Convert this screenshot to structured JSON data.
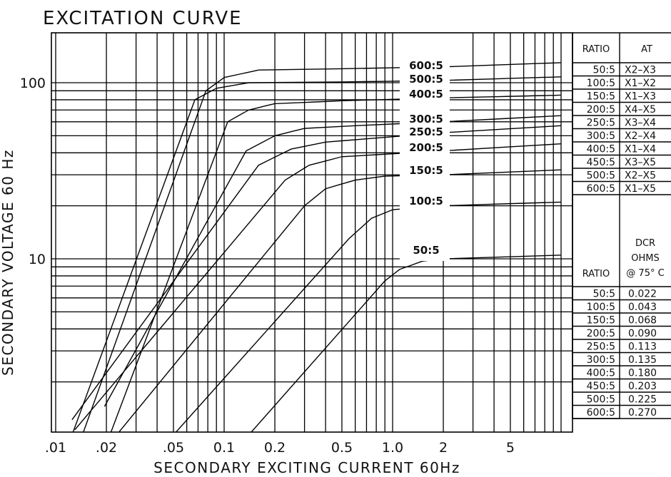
{
  "chart_data": {
    "type": "line",
    "title": "EXCITATION CURVE",
    "xlabel": "SECONDARY EXCITING CURRENT 60Hz",
    "ylabel": "SECONDARY VOLTAGE 60 Hz",
    "x_scale": "log",
    "y_scale": "log",
    "xlim": [
      0.01,
      10
    ],
    "ylim": [
      1,
      200
    ],
    "grid": true,
    "x_tick_labels": [
      ".01",
      ".02",
      ".05",
      "0.1",
      "0.2",
      "0.5",
      "1.0",
      "2",
      "5"
    ],
    "x_ticks": [
      0.01,
      0.02,
      0.05,
      0.1,
      0.2,
      0.5,
      1.0,
      2,
      5
    ],
    "y_tick_labels": [
      "10",
      "100"
    ],
    "y_ticks": [
      10,
      100
    ],
    "series": [
      {
        "name": "600:5",
        "points": [
          [
            0.0144,
            1
          ],
          [
            0.078,
            90
          ],
          [
            0.1,
            107
          ],
          [
            0.16,
            118
          ],
          [
            0.5,
            120
          ],
          [
            2,
            123
          ],
          [
            10,
            130
          ]
        ]
      },
      {
        "name": "500:5",
        "points": [
          [
            0.0125,
            1
          ],
          [
            0.067,
            80
          ],
          [
            0.09,
            93
          ],
          [
            0.14,
            100
          ],
          [
            0.5,
            101
          ],
          [
            2,
            103
          ],
          [
            10,
            108
          ]
        ]
      },
      {
        "name": "400:5",
        "points": [
          [
            0.021,
            1
          ],
          [
            0.105,
            60
          ],
          [
            0.14,
            70
          ],
          [
            0.2,
            76
          ],
          [
            0.5,
            79
          ],
          [
            2,
            82
          ],
          [
            10,
            85
          ]
        ]
      },
      {
        "name": "300:5",
        "points": [
          [
            0.0195,
            1.45
          ],
          [
            0.135,
            41
          ],
          [
            0.2,
            50
          ],
          [
            0.3,
            55
          ],
          [
            0.6,
            57
          ],
          [
            2,
            60
          ],
          [
            10,
            65
          ]
        ]
      },
      {
        "name": "250:5",
        "points": [
          [
            0.0125,
            1.22
          ],
          [
            0.16,
            34
          ],
          [
            0.25,
            42
          ],
          [
            0.4,
            46
          ],
          [
            0.7,
            48
          ],
          [
            2,
            52
          ],
          [
            10,
            57
          ]
        ]
      },
      {
        "name": "200:5",
        "points": [
          [
            0.013,
            1.07
          ],
          [
            0.23,
            28
          ],
          [
            0.32,
            34
          ],
          [
            0.5,
            38
          ],
          [
            0.8,
            39
          ],
          [
            2,
            41
          ],
          [
            10,
            45
          ]
        ]
      },
      {
        "name": "150:5",
        "points": [
          [
            0.023,
            1
          ],
          [
            0.3,
            20
          ],
          [
            0.4,
            25
          ],
          [
            0.6,
            28
          ],
          [
            0.9,
            29.5
          ],
          [
            2,
            30
          ],
          [
            10,
            32
          ]
        ]
      },
      {
        "name": "100:5",
        "points": [
          [
            0.05,
            1
          ],
          [
            0.55,
            13
          ],
          [
            0.75,
            17
          ],
          [
            1.0,
            19
          ],
          [
            2,
            20
          ],
          [
            10,
            21
          ]
        ]
      },
      {
        "name": "50:5",
        "points": [
          [
            0.14,
            1
          ],
          [
            0.9,
            7.5
          ],
          [
            1.1,
            8.7
          ],
          [
            1.5,
            9.7
          ],
          [
            2,
            10
          ],
          [
            10,
            10.5
          ]
        ]
      }
    ]
  },
  "table1": {
    "headers": [
      "RATIO",
      "AT"
    ],
    "rows": [
      [
        "50:5",
        "X2–X3"
      ],
      [
        "100:5",
        "X1–X2"
      ],
      [
        "150:5",
        "X1–X3"
      ],
      [
        "200:5",
        "X4–X5"
      ],
      [
        "250:5",
        "X3–X4"
      ],
      [
        "300:5",
        "X2–X4"
      ],
      [
        "400:5",
        "X1–X4"
      ],
      [
        "450:5",
        "X3–X5"
      ],
      [
        "500:5",
        "X2–X5"
      ],
      [
        "600:5",
        "X1–X5"
      ]
    ]
  },
  "table2": {
    "headers": [
      "RATIO",
      "DCR",
      "OHMS",
      "@ 75° C"
    ],
    "rows": [
      [
        "50:5",
        "0.022"
      ],
      [
        "100:5",
        "0.043"
      ],
      [
        "150:5",
        "0.068"
      ],
      [
        "200:5",
        "0.090"
      ],
      [
        "250:5",
        "0.113"
      ],
      [
        "300:5",
        "0.135"
      ],
      [
        "400:5",
        "0.180"
      ],
      [
        "450:5",
        "0.203"
      ],
      [
        "500:5",
        "0.225"
      ],
      [
        "600:5",
        "0.270"
      ]
    ]
  }
}
